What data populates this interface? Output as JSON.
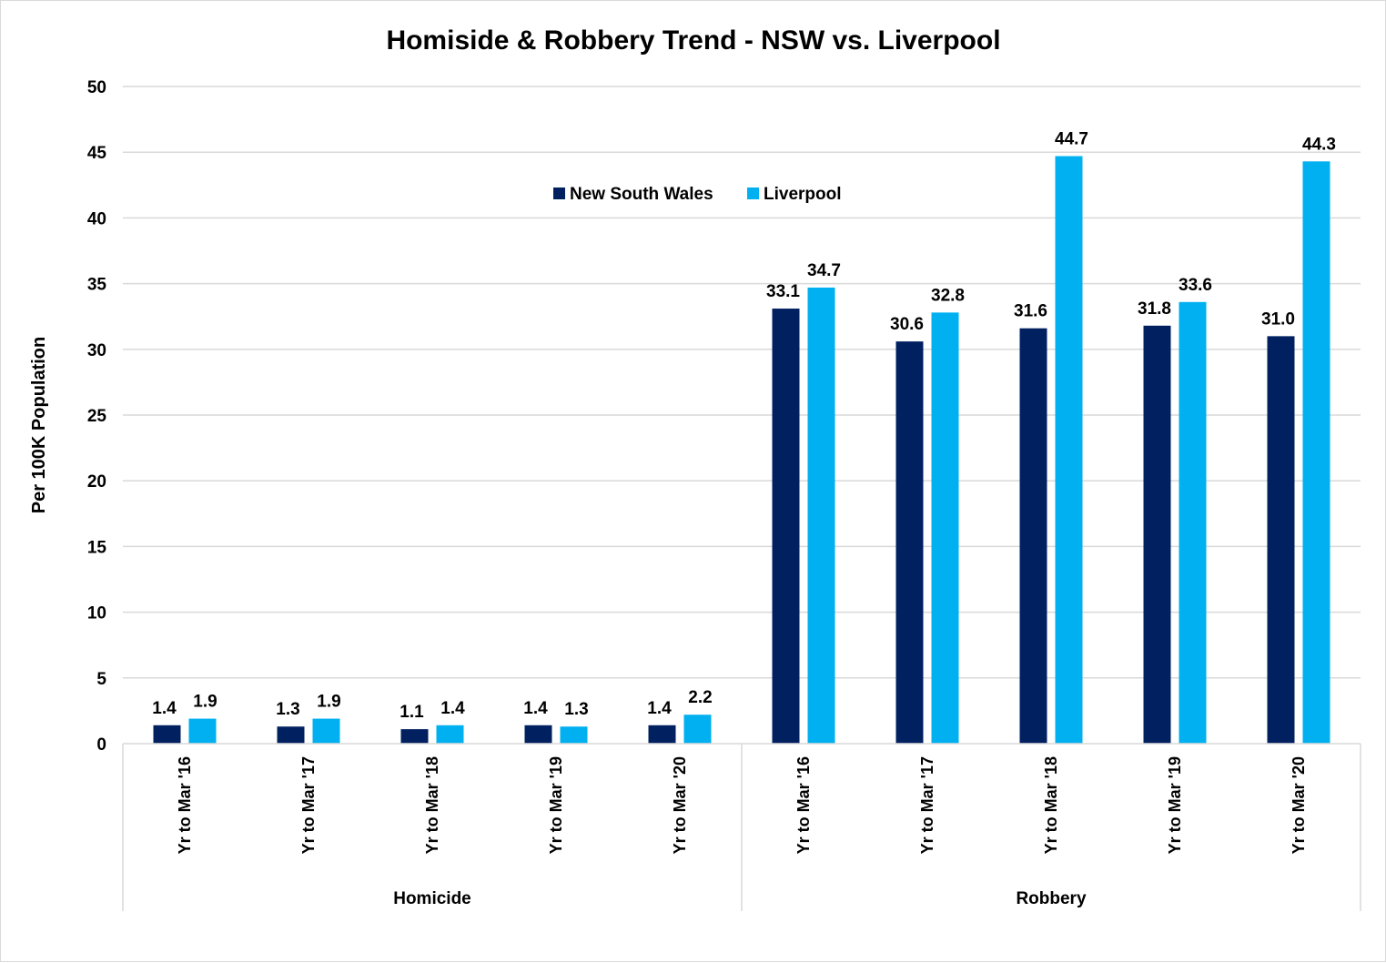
{
  "chart_data": {
    "type": "bar",
    "title": "Homiside & Robbery Trend - NSW vs. Liverpool",
    "ylabel": "Per 100K Population",
    "xlabel": "",
    "ylim": [
      0,
      50
    ],
    "yticks": [
      0,
      5,
      10,
      15,
      20,
      25,
      30,
      35,
      40,
      45,
      50
    ],
    "grid": true,
    "legend_position": "top-center",
    "groups": [
      {
        "name": "Homicide",
        "categories": [
          "Yr to Mar '16",
          "Yr to Mar '17",
          "Yr to Mar '18",
          "Yr to Mar '19",
          "Yr to Mar '20"
        ]
      },
      {
        "name": "Robbery",
        "categories": [
          "Yr to Mar '16",
          "Yr to Mar '17",
          "Yr to Mar '18",
          "Yr to Mar '19",
          "Yr to Mar '20"
        ]
      }
    ],
    "series": [
      {
        "name": "New South Wales",
        "color": "#002060",
        "values": [
          1.4,
          1.3,
          1.1,
          1.4,
          1.4,
          33.1,
          30.6,
          31.6,
          31.8,
          31.0
        ],
        "labels": [
          "1.4",
          "1.3",
          "1.1",
          "1.4",
          "1.4",
          "33.1",
          "30.6",
          "31.6",
          "31.8",
          "31.0"
        ]
      },
      {
        "name": "Liverpool",
        "color": "#00B0F0",
        "values": [
          1.9,
          1.9,
          1.4,
          1.3,
          2.2,
          34.7,
          32.8,
          44.7,
          33.6,
          44.3
        ],
        "labels": [
          "1.9",
          "1.9",
          "1.4",
          "1.3",
          "2.2",
          "34.7",
          "32.8",
          "44.7",
          "33.6",
          "44.3"
        ]
      }
    ]
  }
}
